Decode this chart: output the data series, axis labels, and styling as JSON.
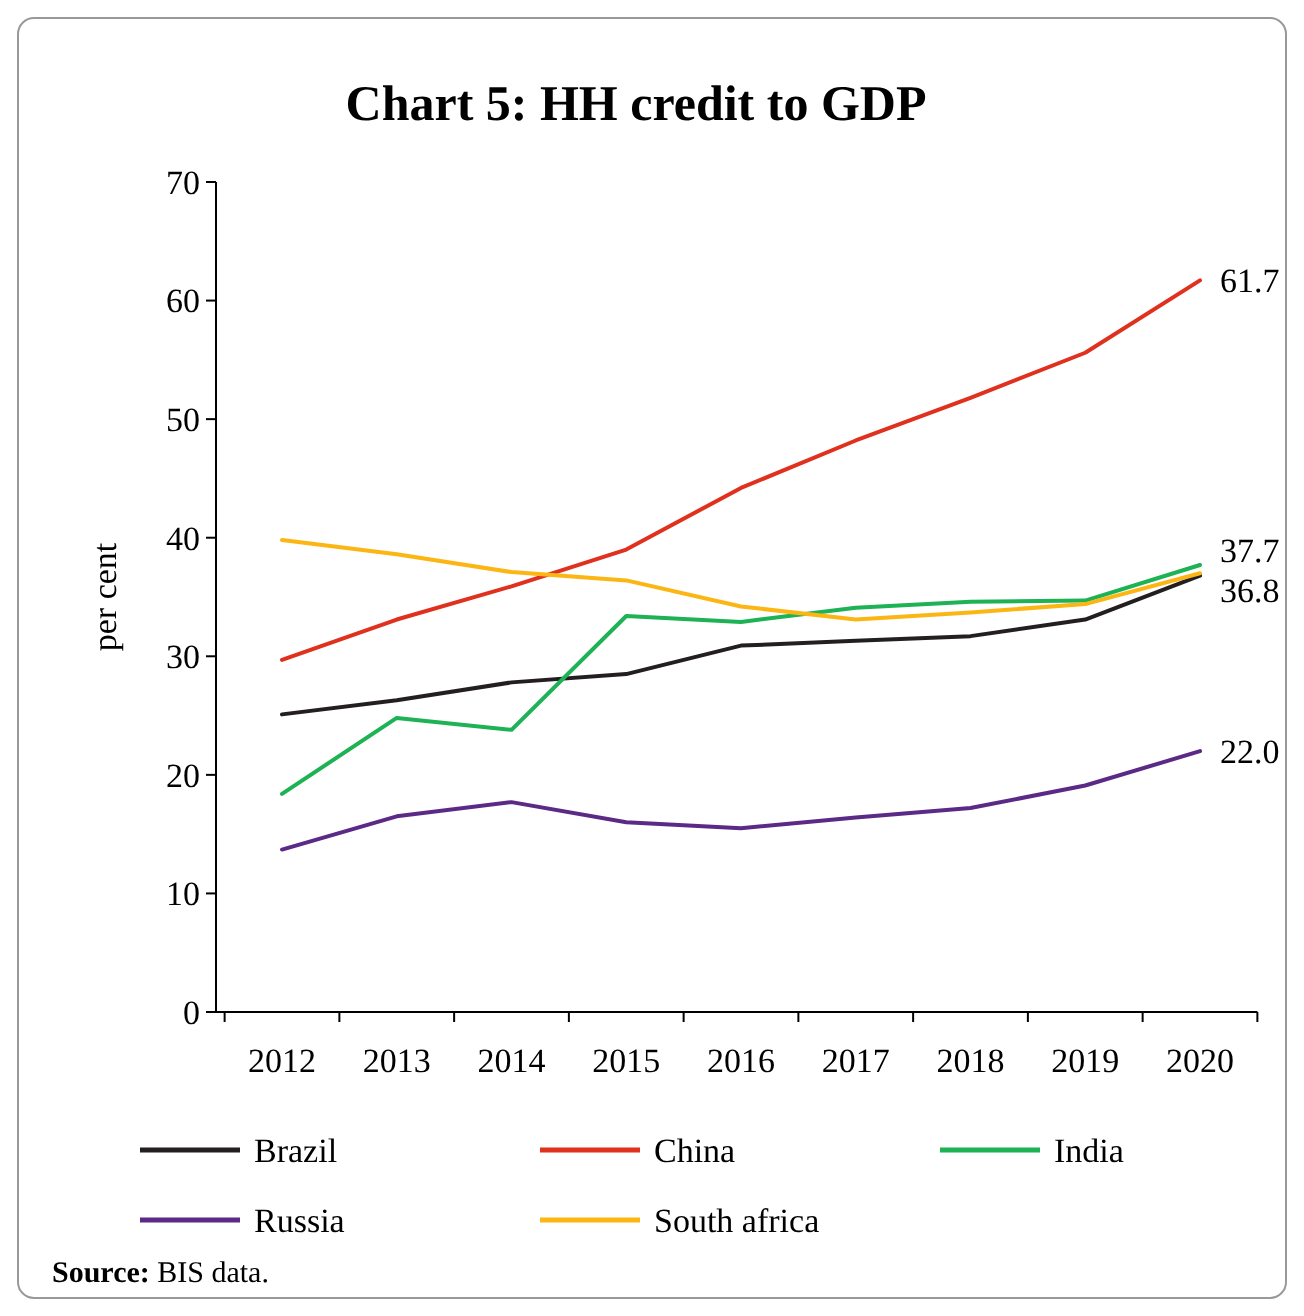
{
  "chart_data": {
    "type": "line",
    "title": "Chart 5: HH credit to GDP",
    "ylabel": "per cent",
    "categories": [
      "2012",
      "2013",
      "2014",
      "2015",
      "2016",
      "2017",
      "2018",
      "2019",
      "2020"
    ],
    "ylim": [
      0,
      70
    ],
    "yticks": [
      0,
      10,
      20,
      30,
      40,
      50,
      60,
      70
    ],
    "grid": false,
    "legend": "bottom",
    "marker": "none",
    "line_style": "solid",
    "series": [
      {
        "name": "Brazil",
        "color": "#231f20",
        "values": [
          25.1,
          26.3,
          27.8,
          28.5,
          30.9,
          31.3,
          31.7,
          33.1,
          36.8
        ],
        "value_labels": [
          null,
          null,
          null,
          null,
          null,
          null,
          null,
          null,
          "36.8"
        ]
      },
      {
        "name": "China",
        "color": "#e0301e",
        "values": [
          29.7,
          33.1,
          35.9,
          39.0,
          44.2,
          48.2,
          51.8,
          55.6,
          61.7
        ],
        "value_labels": [
          null,
          null,
          null,
          null,
          null,
          null,
          null,
          null,
          "61.7"
        ]
      },
      {
        "name": "India",
        "color": "#1db254",
        "values": [
          18.4,
          24.8,
          23.8,
          33.4,
          32.9,
          34.1,
          34.6,
          34.7,
          37.7
        ],
        "value_labels": [
          null,
          null,
          null,
          null,
          null,
          null,
          null,
          null,
          "37.7"
        ]
      },
      {
        "name": "Russia",
        "color": "#5b2a86",
        "values": [
          13.7,
          16.5,
          17.7,
          16.0,
          15.5,
          16.4,
          17.2,
          19.1,
          22.0
        ],
        "value_labels": [
          null,
          null,
          null,
          null,
          null,
          null,
          null,
          null,
          "22.0"
        ]
      },
      {
        "name": "South africa",
        "color": "#fbb614",
        "values": [
          39.8,
          38.6,
          37.1,
          36.4,
          34.2,
          33.1,
          33.7,
          34.4,
          37.0
        ]
      }
    ],
    "annotations": [
      "Source: BIS data."
    ]
  }
}
